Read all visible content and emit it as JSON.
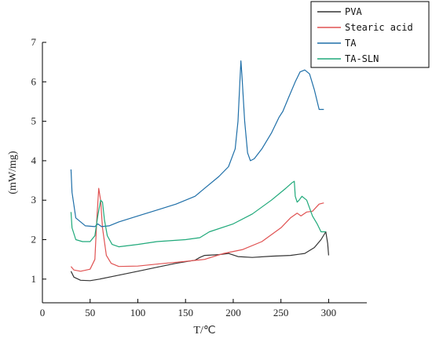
{
  "chart_data": {
    "type": "line",
    "xlabel": "T/℃",
    "ylabel": "(mW/mg)",
    "xlim": [
      0,
      340
    ],
    "ylim": [
      0.4,
      7
    ],
    "xticks": [
      0,
      50,
      100,
      150,
      200,
      250,
      300
    ],
    "yticks": [
      1,
      2,
      3,
      4,
      5,
      6,
      7
    ],
    "legend_position": "top-right",
    "series": [
      {
        "name": "PVA",
        "color": "#333333",
        "points": [
          [
            30,
            1.2
          ],
          [
            33,
            1.05
          ],
          [
            40,
            0.97
          ],
          [
            50,
            0.96
          ],
          [
            60,
            1.0
          ],
          [
            80,
            1.1
          ],
          [
            100,
            1.2
          ],
          [
            120,
            1.3
          ],
          [
            140,
            1.4
          ],
          [
            160,
            1.48
          ],
          [
            165,
            1.55
          ],
          [
            170,
            1.6
          ],
          [
            185,
            1.62
          ],
          [
            195,
            1.65
          ],
          [
            205,
            1.57
          ],
          [
            220,
            1.55
          ],
          [
            240,
            1.58
          ],
          [
            260,
            1.6
          ],
          [
            275,
            1.65
          ],
          [
            285,
            1.8
          ],
          [
            292,
            2.0
          ],
          [
            297,
            2.2
          ],
          [
            299,
            1.9
          ],
          [
            300,
            1.6
          ]
        ]
      },
      {
        "name": "Stearic acid",
        "color": "#e05252",
        "points": [
          [
            30,
            1.32
          ],
          [
            33,
            1.23
          ],
          [
            40,
            1.2
          ],
          [
            50,
            1.25
          ],
          [
            55,
            1.5
          ],
          [
            57,
            2.5
          ],
          [
            59,
            3.3
          ],
          [
            61,
            3.0
          ],
          [
            63,
            2.3
          ],
          [
            67,
            1.6
          ],
          [
            72,
            1.4
          ],
          [
            80,
            1.32
          ],
          [
            100,
            1.33
          ],
          [
            120,
            1.38
          ],
          [
            150,
            1.45
          ],
          [
            170,
            1.5
          ],
          [
            190,
            1.65
          ],
          [
            210,
            1.75
          ],
          [
            230,
            1.95
          ],
          [
            250,
            2.3
          ],
          [
            260,
            2.55
          ],
          [
            267,
            2.67
          ],
          [
            271,
            2.6
          ],
          [
            277,
            2.7
          ],
          [
            283,
            2.72
          ],
          [
            290,
            2.9
          ],
          [
            295,
            2.93
          ]
        ]
      },
      {
        "name": "TA",
        "color": "#1f6fa8",
        "points": [
          [
            30,
            3.78
          ],
          [
            31,
            3.2
          ],
          [
            35,
            2.55
          ],
          [
            45,
            2.35
          ],
          [
            55,
            2.33
          ],
          [
            58,
            2.4
          ],
          [
            62,
            2.33
          ],
          [
            70,
            2.35
          ],
          [
            80,
            2.45
          ],
          [
            100,
            2.6
          ],
          [
            120,
            2.75
          ],
          [
            140,
            2.9
          ],
          [
            160,
            3.1
          ],
          [
            170,
            3.3
          ],
          [
            185,
            3.6
          ],
          [
            195,
            3.85
          ],
          [
            202,
            4.3
          ],
          [
            205,
            5.0
          ],
          [
            207,
            6.0
          ],
          [
            208,
            6.53
          ],
          [
            209,
            6.2
          ],
          [
            212,
            5.0
          ],
          [
            215,
            4.2
          ],
          [
            218,
            4.0
          ],
          [
            222,
            4.05
          ],
          [
            230,
            4.3
          ],
          [
            240,
            4.7
          ],
          [
            248,
            5.1
          ],
          [
            252,
            5.25
          ],
          [
            258,
            5.6
          ],
          [
            265,
            6.0
          ],
          [
            270,
            6.25
          ],
          [
            275,
            6.3
          ],
          [
            280,
            6.2
          ],
          [
            285,
            5.8
          ],
          [
            290,
            5.3
          ],
          [
            295,
            5.3
          ]
        ]
      },
      {
        "name": "TA-SLN",
        "color": "#1fa97a",
        "points": [
          [
            30,
            2.7
          ],
          [
            31,
            2.3
          ],
          [
            35,
            2.0
          ],
          [
            42,
            1.95
          ],
          [
            50,
            1.95
          ],
          [
            55,
            2.1
          ],
          [
            58,
            2.6
          ],
          [
            61,
            3.0
          ],
          [
            63,
            2.95
          ],
          [
            65,
            2.5
          ],
          [
            68,
            2.1
          ],
          [
            73,
            1.88
          ],
          [
            80,
            1.82
          ],
          [
            100,
            1.88
          ],
          [
            120,
            1.95
          ],
          [
            150,
            2.0
          ],
          [
            165,
            2.05
          ],
          [
            175,
            2.2
          ],
          [
            200,
            2.4
          ],
          [
            220,
            2.65
          ],
          [
            240,
            3.0
          ],
          [
            255,
            3.3
          ],
          [
            262,
            3.45
          ],
          [
            264,
            3.48
          ],
          [
            265,
            3.1
          ],
          [
            267,
            2.95
          ],
          [
            269,
            3.0
          ],
          [
            272,
            3.1
          ],
          [
            277,
            3.0
          ],
          [
            283,
            2.6
          ],
          [
            288,
            2.4
          ],
          [
            292,
            2.2
          ],
          [
            297,
            2.2
          ]
        ]
      }
    ]
  }
}
